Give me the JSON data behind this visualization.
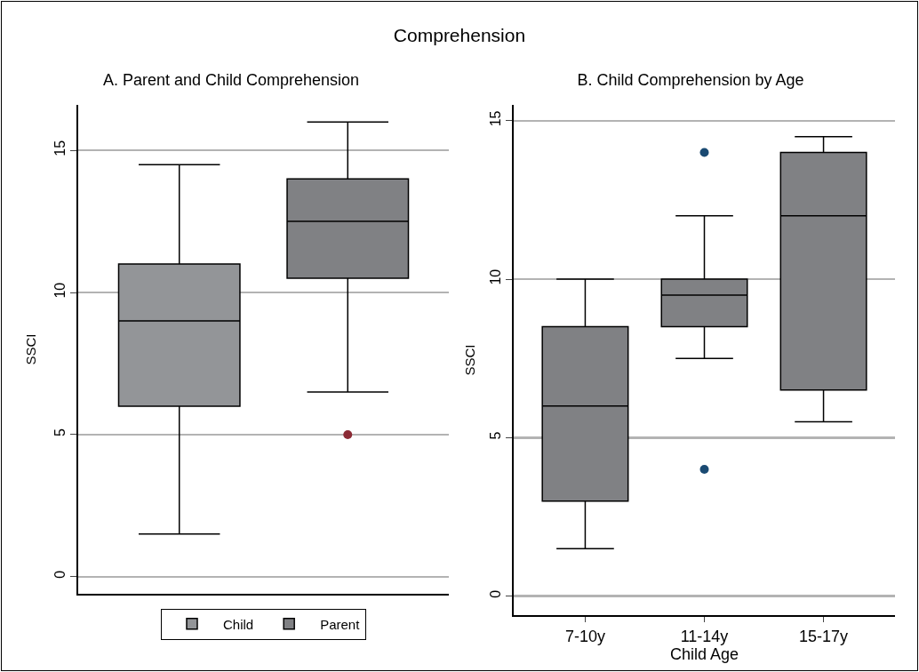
{
  "chart_data": [
    {
      "type": "box",
      "title": "Comprehension",
      "subtitle": "A. Parent and Child Comprehension",
      "ylabel": "SSCI",
      "categories": [
        null,
        null
      ],
      "ylim": [
        -0.6,
        16.6
      ],
      "yticks": [
        0,
        5,
        10,
        15
      ],
      "grid": "y",
      "legend": "bottom",
      "tick_labels": "y",
      "series": [
        {
          "name": "Child",
          "color": "#939598",
          "boxes": [
            {
              "low": 1.5,
              "q1": 6,
              "median": 9,
              "q3": 11,
              "high": 14.5
            },
            null
          ]
        },
        {
          "name": "Parent",
          "color": "#808184",
          "boxes": [
            null,
            {
              "low": 6.5,
              "q1": 10.5,
              "median": 12.5,
              "q3": 14,
              "high": 16
            }
          ]
        },
        {
          "type": "scatter",
          "color": "#8b2a35",
          "values": [
            null,
            5
          ]
        }
      ]
    },
    {
      "type": "box",
      "title": "B. Child Comprehension by Age",
      "xlabel": "Child Age",
      "ylabel": "SSCI",
      "categories": [
        "7-10y",
        "11-14y",
        "15-17y"
      ],
      "ylim": [
        -0.6,
        15.5
      ],
      "yticks": [
        0,
        5,
        10,
        15
      ],
      "grid": "y",
      "series": [
        {
          "color": "#808184",
          "boxes": [
            {
              "low": 1.5,
              "q1": 3,
              "median": 6,
              "q3": 8.5,
              "high": 10
            },
            {
              "low": 7.5,
              "q1": 8.5,
              "median": 9.5,
              "q3": 10,
              "high": 12
            },
            {
              "low": 5.5,
              "q1": 6.5,
              "median": 12,
              "q3": 14,
              "high": 14.5
            }
          ]
        },
        {
          "type": "scatter",
          "color": "#1a4a72",
          "values": [
            null,
            4,
            null
          ]
        },
        {
          "type": "scatter",
          "color": "#1a4a72",
          "values": [
            null,
            14,
            null
          ]
        }
      ]
    }
  ]
}
